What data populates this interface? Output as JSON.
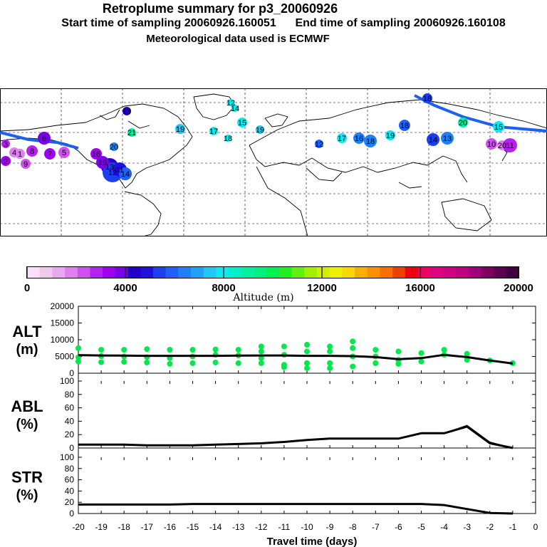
{
  "title": "Retroplume summary for p3_20060926",
  "subtitle_start": "Start time of sampling 20060926.160051",
  "subtitle_end": "End time of sampling 20060926.160108",
  "subtitle_met": "Meteorological data used is ECMWF",
  "colorbar": {
    "label": "Altitude (m)",
    "ticks": [
      "0",
      "4000",
      "8000",
      "12000",
      "16000",
      "20000"
    ],
    "colors": [
      "#f8e0f8",
      "#f0c8f0",
      "#e8a8f0",
      "#e080f0",
      "#d050f0",
      "#b820f0",
      "#a000f0",
      "#7800e8",
      "#2000c8",
      "#2010e0",
      "#1c40f0",
      "#2060f8",
      "#2080f8",
      "#20a0f8",
      "#20c8f8",
      "#10e8f0",
      "#00f0c8",
      "#00f0a0",
      "#00f080",
      "#00f050",
      "#20f020",
      "#60f010",
      "#a0f000",
      "#d0f000",
      "#f0f000",
      "#f8d800",
      "#f8b000",
      "#f89000",
      "#f87000",
      "#f04000",
      "#f00010",
      "#f00060",
      "#e00080",
      "#d00080",
      "#c00080",
      "#a00080",
      "#800060",
      "#600050",
      "#400040"
    ]
  },
  "map": {
    "labels": [
      "15",
      "12",
      "14",
      "19",
      "17",
      "18",
      "21",
      "19",
      "18",
      "13",
      "12",
      "20",
      "14",
      "13",
      "16",
      "15",
      "18",
      "20",
      "17",
      "18",
      "19",
      "10",
      "11",
      "16",
      "9",
      "8",
      "7",
      "6",
      "5",
      "4",
      "3",
      "2",
      "1",
      "13",
      "12",
      "11",
      "14",
      "15",
      "20"
    ]
  },
  "chart_data": [
    {
      "type": "line",
      "panel": "ALT",
      "ylabel": "ALT\n(m)",
      "ylabel_top": "ALT",
      "ylabel_bottom": "(m)",
      "ylim": [
        0,
        20000
      ],
      "yticks": [
        "0",
        "5000",
        "10000",
        "15000",
        "20000"
      ],
      "x": [
        -20,
        -19,
        -18,
        -17,
        -16,
        -15,
        -14,
        -13,
        -12,
        -11,
        -10,
        -9,
        -8,
        -7,
        -6,
        -5,
        -4,
        -3,
        -2,
        -1
      ],
      "mean": [
        5400,
        5300,
        5250,
        5200,
        5200,
        5200,
        5200,
        5250,
        5300,
        5300,
        5200,
        5200,
        5100,
        4800,
        4200,
        4500,
        5500,
        4800,
        3800,
        2900
      ],
      "scatter": [
        [
          -20,
          7500
        ],
        [
          -20,
          4800
        ],
        [
          -20,
          3500
        ],
        [
          -19,
          7000
        ],
        [
          -19,
          5100
        ],
        [
          -19,
          3300
        ],
        [
          -18,
          7000
        ],
        [
          -18,
          5000
        ],
        [
          -18,
          3400
        ],
        [
          -17,
          7200
        ],
        [
          -17,
          4800
        ],
        [
          -17,
          3200
        ],
        [
          -16,
          7000
        ],
        [
          -16,
          4500
        ],
        [
          -16,
          2800
        ],
        [
          -15,
          7000
        ],
        [
          -15,
          5000
        ],
        [
          -15,
          3000
        ],
        [
          -14,
          7100
        ],
        [
          -14,
          5500
        ],
        [
          -14,
          3200
        ],
        [
          -13,
          7000
        ],
        [
          -13,
          5300
        ],
        [
          -13,
          3000
        ],
        [
          -12,
          8000
        ],
        [
          -12,
          6500
        ],
        [
          -12,
          4500
        ],
        [
          -12,
          3000
        ],
        [
          -11,
          8000
        ],
        [
          -11,
          5500
        ],
        [
          -11,
          2500
        ],
        [
          -11,
          1800
        ],
        [
          -10,
          8500
        ],
        [
          -10,
          6500
        ],
        [
          -10,
          3000
        ],
        [
          -10,
          1500
        ],
        [
          -9,
          8000
        ],
        [
          -9,
          6500
        ],
        [
          -9,
          3000
        ],
        [
          -9,
          1500
        ],
        [
          -8,
          9500
        ],
        [
          -8,
          7500
        ],
        [
          -8,
          5000
        ],
        [
          -8,
          2000
        ],
        [
          -7,
          7000
        ],
        [
          -7,
          5000
        ],
        [
          -7,
          3000
        ],
        [
          -6,
          6500
        ],
        [
          -6,
          4000
        ],
        [
          -6,
          2800
        ],
        [
          -5,
          6000
        ],
        [
          -5,
          3500
        ],
        [
          -4,
          7000
        ],
        [
          -4,
          5500
        ],
        [
          -3,
          5800
        ],
        [
          -3,
          4000
        ],
        [
          -2,
          3800
        ],
        [
          -1,
          3000
        ]
      ],
      "color": "#00e84a"
    },
    {
      "type": "line",
      "panel": "ABL",
      "ylabel_top": "ABL",
      "ylabel_bottom": "(%)",
      "ylim": [
        0,
        100
      ],
      "yticks": [
        "0",
        "20",
        "40",
        "60",
        "80",
        "100"
      ],
      "x": [
        -20,
        -19,
        -18,
        -17,
        -16,
        -15,
        -14,
        -13,
        -12,
        -11,
        -10,
        -9,
        -8,
        -7,
        -6,
        -5,
        -4,
        -3,
        -2,
        -1
      ],
      "values": [
        5,
        5,
        5,
        4,
        4,
        4,
        5,
        6,
        7,
        9,
        12,
        14,
        14,
        14,
        14,
        22,
        22,
        32,
        7,
        0
      ],
      "values_upper": [
        5,
        5,
        5,
        4,
        4,
        4,
        5,
        6,
        7,
        9,
        12,
        14,
        14,
        14,
        14,
        22,
        22,
        34,
        9,
        0
      ]
    },
    {
      "type": "line",
      "panel": "STR",
      "ylabel_top": "STR",
      "ylabel_bottom": "(%)",
      "ylim": [
        0,
        100
      ],
      "yticks": [
        "0",
        "20",
        "40",
        "60",
        "80",
        "100"
      ],
      "x": [
        -20,
        -19,
        -18,
        -17,
        -16,
        -15,
        -14,
        -13,
        -12,
        -11,
        -10,
        -9,
        -8,
        -7,
        -6,
        -5,
        -4,
        -3,
        -2,
        -1
      ],
      "values": [
        16,
        16,
        16,
        16,
        16,
        17,
        17,
        17,
        17,
        17,
        17,
        17,
        17,
        17,
        17,
        17,
        15,
        8,
        1,
        0
      ],
      "xlabel": "Travel time (days)",
      "xticks": [
        "-20",
        "-19",
        "-18",
        "-17",
        "-16",
        "-15",
        "-14",
        "-13",
        "-12",
        "-11",
        "-10",
        "-9",
        "-8",
        "-7",
        "-6",
        "-5",
        "-4",
        "-3",
        "-2",
        "-1",
        "0"
      ]
    }
  ]
}
